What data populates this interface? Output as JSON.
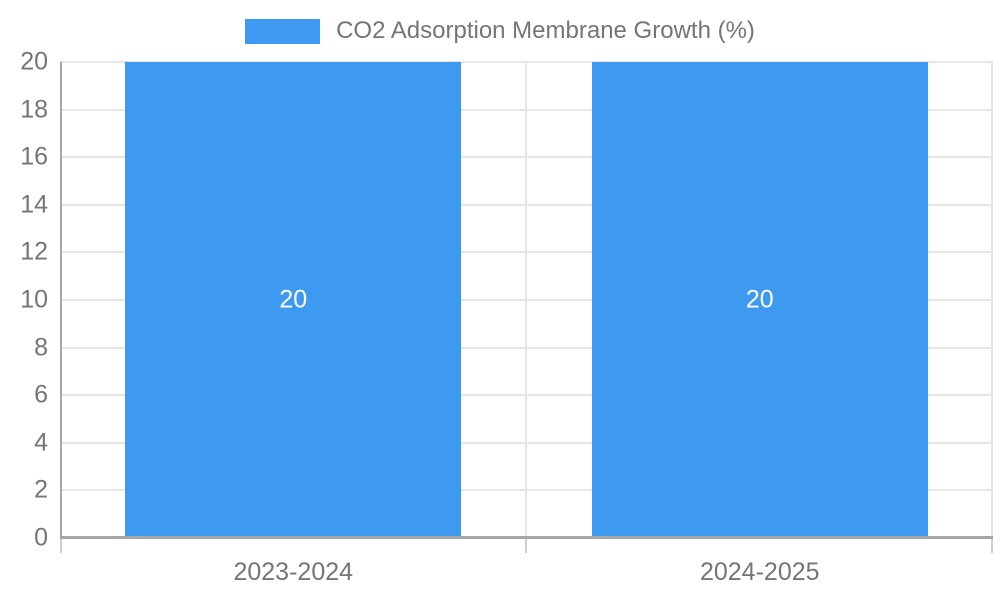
{
  "legend": {
    "label": "CO2 Adsorption Membrane Growth (%)"
  },
  "chart_data": {
    "type": "bar",
    "title": "CO2 Adsorption Membrane Growth (%)",
    "categories": [
      "2023-2024",
      "2024-2025"
    ],
    "series": [
      {
        "name": "CO2 Adsorption Membrane Growth (%)",
        "values": [
          20,
          20
        ]
      }
    ],
    "bar_labels": [
      "20",
      "20"
    ],
    "xlabel": "",
    "ylabel": "",
    "ylim": [
      0,
      20
    ],
    "ytick_step": 2,
    "grid": true,
    "legend_position": "top-center",
    "bar_width_fraction": 0.72,
    "colors": {
      "bar": "#3E9AF0",
      "axis": "#A6A6A6",
      "grid": "#E6E6E6",
      "below_tick": "#CFCFCF",
      "text": "#757575",
      "bar_label": "#FFFFFF",
      "background": "#FFFFFF"
    }
  }
}
